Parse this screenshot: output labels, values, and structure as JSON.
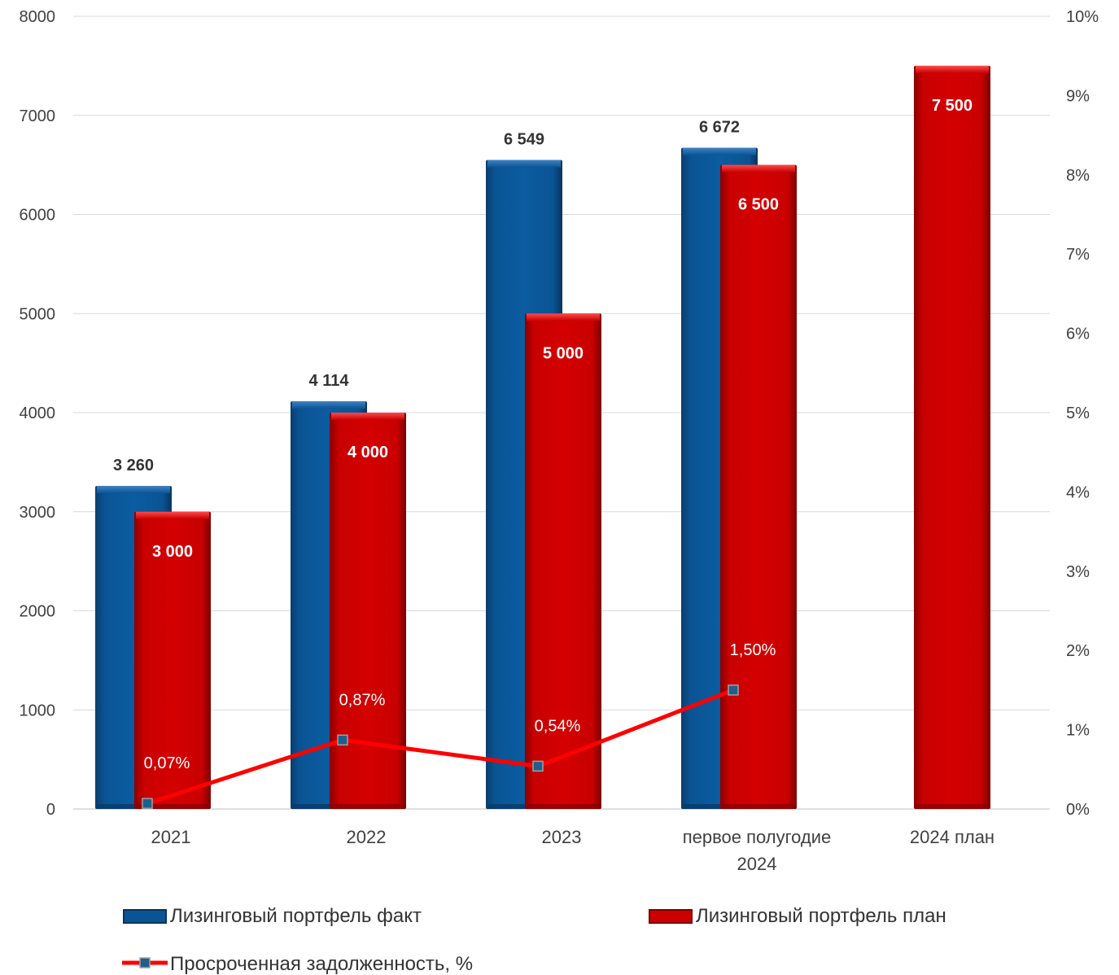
{
  "chart_data": {
    "type": "bar",
    "categories": [
      "2021",
      "2022",
      "2023",
      "первое полугодие 2024",
      "2024 план"
    ],
    "category_lines": [
      [
        "2021"
      ],
      [
        "2022"
      ],
      [
        "2023"
      ],
      [
        "первое полугодие",
        "2024"
      ],
      [
        "2024 план"
      ]
    ],
    "series": [
      {
        "name": "Лизинговый портфель факт",
        "type": "bar",
        "axis": "left",
        "color": "#0a5494",
        "values": [
          3260,
          4114,
          6549,
          6672,
          null
        ],
        "labels": [
          "3 260",
          "4 114",
          "6 549",
          "6 672",
          ""
        ]
      },
      {
        "name": "Лизинговый портфель план",
        "type": "bar",
        "axis": "left",
        "color": "#cc0000",
        "values": [
          3000,
          4000,
          5000,
          6500,
          7500
        ],
        "labels": [
          "3 000",
          "4 000",
          "5 000",
          "6 500",
          "7 500"
        ]
      },
      {
        "name": "Просроченная задолженность, %",
        "type": "line",
        "axis": "right",
        "color": "#ff0000",
        "marker_color": "#1f5f8b",
        "values": [
          0.07,
          0.87,
          0.54,
          1.5,
          null
        ],
        "labels": [
          "0,07%",
          "0,87%",
          "0,54%",
          "1,50%",
          ""
        ]
      }
    ],
    "y_left": {
      "min": 0,
      "max": 8000,
      "ticks": [
        "0",
        "1000",
        "2000",
        "3000",
        "4000",
        "5000",
        "6000",
        "7000",
        "8000"
      ]
    },
    "y_right": {
      "min": 0,
      "max": 10,
      "ticks": [
        "0%",
        "1%",
        "2%",
        "3%",
        "4%",
        "5%",
        "6%",
        "7%",
        "8%",
        "9%",
        "10%"
      ]
    },
    "grid": true,
    "legend_position": "bottom"
  }
}
